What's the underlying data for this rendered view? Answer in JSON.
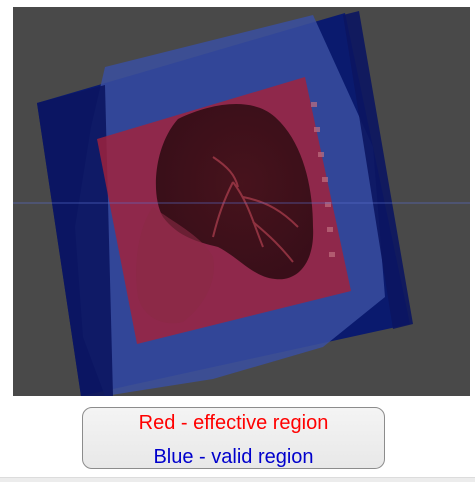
{
  "legend": {
    "effective_label": "Red - effective region",
    "valid_label": "Blue - valid region"
  },
  "colors": {
    "effective": "#ff0000",
    "valid": "#0000cc",
    "viewer_background": "#494949"
  }
}
